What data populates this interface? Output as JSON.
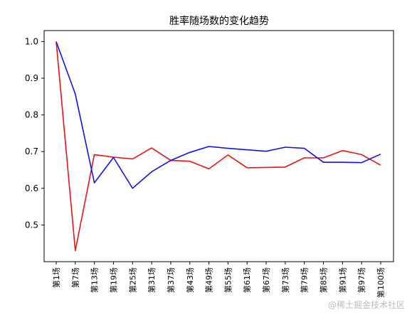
{
  "chart_data": {
    "type": "line",
    "title": "胜率随场数的变化趋势",
    "xlabel": "",
    "ylabel": "",
    "categories": [
      "第1场",
      "第7场",
      "第13场",
      "第19场",
      "第25场",
      "第31场",
      "第37场",
      "第43场",
      "第49场",
      "第55场",
      "第61场",
      "第67场",
      "第73场",
      "第79场",
      "第85场",
      "第91场",
      "第97场",
      "第100场"
    ],
    "yticks": [
      0.5,
      0.6,
      0.7,
      0.8,
      0.9,
      1.0
    ],
    "ytick_labels": [
      "0.5",
      "0.6",
      "0.7",
      "0.8",
      "0.9",
      "1.0"
    ],
    "ylim": [
      0.4,
      1.03
    ],
    "grid": false,
    "series": [
      {
        "color": "#ee1111",
        "values": [
          1.0,
          0.43,
          0.692,
          0.685,
          0.68,
          0.71,
          0.676,
          0.674,
          0.653,
          0.691,
          0.656,
          0.657,
          0.658,
          0.683,
          0.683,
          0.703,
          0.692,
          0.663
        ]
      },
      {
        "color": "#1111ee",
        "values": [
          1.0,
          0.857,
          0.615,
          0.684,
          0.6,
          0.645,
          0.676,
          0.698,
          0.714,
          0.709,
          0.705,
          0.701,
          0.712,
          0.709,
          0.671,
          0.671,
          0.67,
          0.693
        ]
      }
    ]
  },
  "watermark": "@稀土掘金技术社区"
}
